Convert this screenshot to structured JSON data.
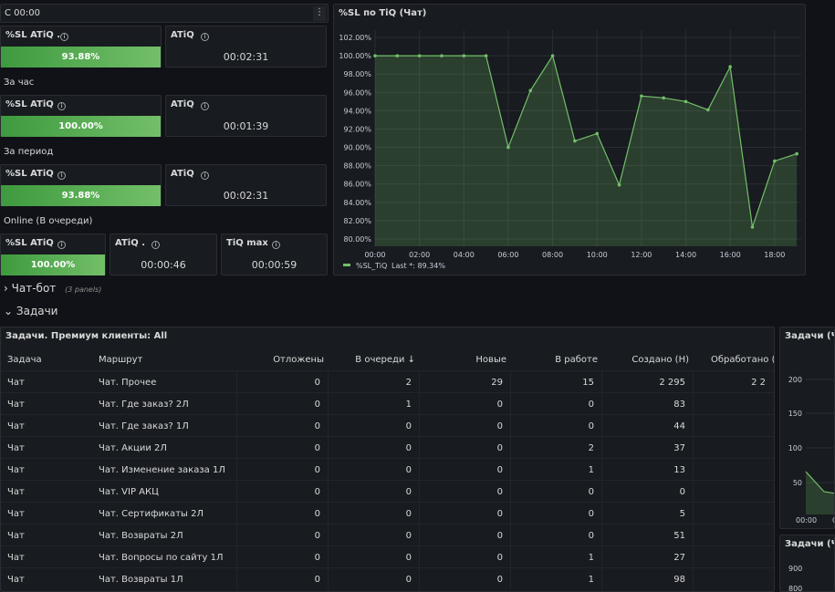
{
  "top_bar": {
    "label": "С 00:00"
  },
  "stat_panels": {
    "p1_title": "%SL ATiQ .",
    "p1_value": "93.88%",
    "p2_title": "ATiQ",
    "p2_value": "00:02:31",
    "section_hour": "За час",
    "p3_title": "%SL ATiQ",
    "p3_value": "100.00%",
    "p4_title": "ATiQ",
    "p4_value": "00:01:39",
    "section_period": "За период",
    "p5_title": "%SL ATiQ",
    "p5_value": "93.88%",
    "p6_title": "ATiQ",
    "p6_value": "00:02:31",
    "section_online": "Online (В очереди)",
    "p7_title": "%SL ATiQ",
    "p7_value": "100.00%",
    "p8_title": "ATiQ .",
    "p8_value": "00:00:46",
    "p9_title": "TiQ max",
    "p9_value": "00:00:59"
  },
  "colors": {
    "accent_green": "#73bf69",
    "bg": "#111217",
    "panel": "#181b1f"
  },
  "chart_data": {
    "type": "area",
    "title": "%SL по TiQ (Чат)",
    "x_ticks": [
      "00:00",
      "02:00",
      "04:00",
      "06:00",
      "08:00",
      "10:00",
      "12:00",
      "14:00",
      "16:00",
      "18:00"
    ],
    "y_ticks": [
      "102.00%",
      "100.00%",
      "98.00%",
      "96.00%",
      "94.00%",
      "92.00%",
      "90.00%",
      "88.00%",
      "86.00%",
      "84.00%",
      "82.00%",
      "80.00%"
    ],
    "ylim": [
      79.2,
      102.8
    ],
    "xlim": [
      0,
      19.2
    ],
    "series": [
      {
        "name": "%SL_TiQ",
        "x": [
          0,
          1,
          2,
          3,
          4,
          5,
          6,
          7,
          8,
          9,
          10,
          11,
          12,
          13,
          14,
          15,
          16,
          17,
          18,
          19
        ],
        "y": [
          100,
          100,
          100,
          100,
          100,
          100,
          90.0,
          96.2,
          100,
          90.7,
          91.5,
          85.9,
          95.6,
          95.4,
          95.0,
          94.1,
          98.8,
          81.3,
          88.5,
          89.3
        ]
      }
    ],
    "legend": {
      "label": "%SL_TiQ",
      "last_label": "Last *: 89.34%"
    },
    "grid": true
  },
  "rows": {
    "chatbot": {
      "label": "Чат-бот",
      "panels": "(3 panels)"
    },
    "tasks": {
      "label": "Задачи"
    }
  },
  "table": {
    "title": "Задачи. Премиум клиенты: All",
    "headers": [
      "Задача",
      "Маршрут",
      "Отложены",
      "В очереди",
      "Новые",
      "В работе",
      "Создано (Н)",
      "Обработано (I"
    ],
    "rows": [
      [
        "Чат",
        "Чат. Прочее",
        "0",
        "2",
        "29",
        "15",
        "2 295",
        "2 2"
      ],
      [
        "Чат",
        "Чат. Где заказ? 2Л",
        "0",
        "1",
        "0",
        "0",
        "83",
        ""
      ],
      [
        "Чат",
        "Чат. Где заказ? 1Л",
        "0",
        "0",
        "0",
        "0",
        "44",
        ""
      ],
      [
        "Чат",
        "Чат. Акции 2Л",
        "0",
        "0",
        "0",
        "2",
        "37",
        ""
      ],
      [
        "Чат",
        "Чат. Изменение заказа 1Л",
        "0",
        "0",
        "0",
        "1",
        "13",
        ""
      ],
      [
        "Чат",
        "Чат. VIP АКЦ",
        "0",
        "0",
        "0",
        "0",
        "0",
        ""
      ],
      [
        "Чат",
        "Чат. Сертификаты 2Л",
        "0",
        "0",
        "0",
        "0",
        "5",
        ""
      ],
      [
        "Чат",
        "Чат. Возвраты 2Л",
        "0",
        "0",
        "0",
        "0",
        "51",
        ""
      ],
      [
        "Чат",
        "Чат. Вопросы по сайту 1Л",
        "0",
        "0",
        "0",
        "1",
        "27",
        ""
      ],
      [
        "Чат",
        "Чат. Возвраты 1Л",
        "0",
        "0",
        "0",
        "1",
        "98",
        ""
      ]
    ]
  },
  "right_panels": {
    "p1_title": "Задачи (Чат",
    "p1_y": [
      "200",
      "150",
      "100",
      "50"
    ],
    "p1_x": [
      "00:00",
      "0"
    ],
    "p2_title": "Задачи (Чат",
    "p2_y": [
      "900",
      "800"
    ]
  }
}
